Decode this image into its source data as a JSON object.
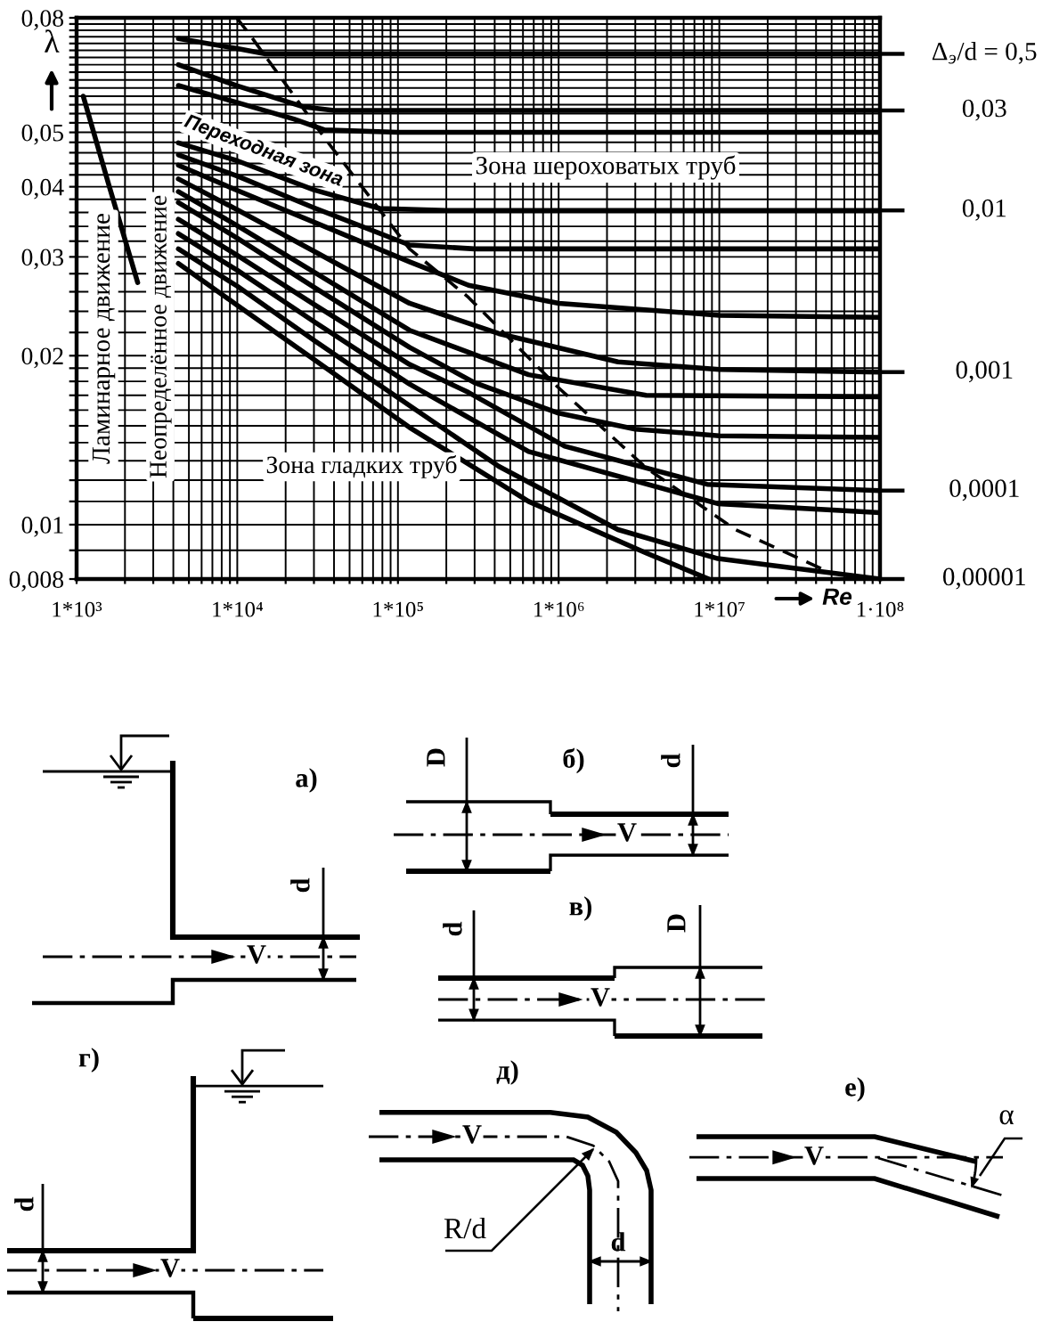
{
  "chart_data": {
    "type": "line",
    "xlabel": "Re",
    "ylabel": "λ",
    "log": "xy",
    "grid": true,
    "line_style": "solid",
    "legend": "right",
    "xlim": [
      1000,
      100000000
    ],
    "ylim": [
      0.008,
      0.08
    ],
    "xticks": [
      {
        "value": 1000,
        "label": "1*10³"
      },
      {
        "value": 2000,
        "label": null
      },
      {
        "value": 3000,
        "label": null
      },
      {
        "value": 4000,
        "label": null
      },
      {
        "value": 5000,
        "label": null
      },
      {
        "value": 6000,
        "label": null
      },
      {
        "value": 7000,
        "label": null
      },
      {
        "value": 8000,
        "label": null
      },
      {
        "value": 9000,
        "label": null
      },
      {
        "value": 10000,
        "label": "1*10⁴"
      },
      {
        "value": 20000,
        "label": null
      },
      {
        "value": 30000,
        "label": null
      },
      {
        "value": 40000,
        "label": null
      },
      {
        "value": 50000,
        "label": null
      },
      {
        "value": 60000,
        "label": null
      },
      {
        "value": 70000,
        "label": null
      },
      {
        "value": 80000,
        "label": null
      },
      {
        "value": 90000,
        "label": null
      },
      {
        "value": 100000,
        "label": "1*10⁵"
      },
      {
        "value": 200000,
        "label": null
      },
      {
        "value": 300000,
        "label": null
      },
      {
        "value": 400000,
        "label": null
      },
      {
        "value": 500000,
        "label": null
      },
      {
        "value": 600000,
        "label": null
      },
      {
        "value": 700000,
        "label": null
      },
      {
        "value": 800000,
        "label": null
      },
      {
        "value": 900000,
        "label": null
      },
      {
        "value": 1000000,
        "label": "1*10⁶"
      },
      {
        "value": 2000000,
        "label": null
      },
      {
        "value": 3000000,
        "label": null
      },
      {
        "value": 4000000,
        "label": null
      },
      {
        "value": 5000000,
        "label": null
      },
      {
        "value": 6000000,
        "label": null
      },
      {
        "value": 7000000,
        "label": null
      },
      {
        "value": 8000000,
        "label": null
      },
      {
        "value": 9000000,
        "label": null
      },
      {
        "value": 10000000,
        "label": "1*10⁷"
      },
      {
        "value": 20000000,
        "label": null
      },
      {
        "value": 30000000,
        "label": null
      },
      {
        "value": 40000000,
        "label": null
      },
      {
        "value": 50000000,
        "label": null
      },
      {
        "value": 60000000,
        "label": null
      },
      {
        "value": 70000000,
        "label": null
      },
      {
        "value": 80000000,
        "label": null
      },
      {
        "value": 90000000,
        "label": null
      },
      {
        "value": 100000000,
        "label": "1·10⁸"
      }
    ],
    "yticks": [
      {
        "value": 0.008,
        "label": "0,008"
      },
      {
        "value": 0.009,
        "label": null
      },
      {
        "value": 0.01,
        "label": "0,01"
      },
      {
        "value": 0.011,
        "label": null
      },
      {
        "value": 0.012,
        "label": null
      },
      {
        "value": 0.013,
        "label": null
      },
      {
        "value": 0.014,
        "label": null
      },
      {
        "value": 0.015,
        "label": null
      },
      {
        "value": 0.016,
        "label": null
      },
      {
        "value": 0.017,
        "label": null
      },
      {
        "value": 0.018,
        "label": null
      },
      {
        "value": 0.019,
        "label": null
      },
      {
        "value": 0.02,
        "label": "0,02"
      },
      {
        "value": 0.022,
        "label": null
      },
      {
        "value": 0.024,
        "label": null
      },
      {
        "value": 0.026,
        "label": null
      },
      {
        "value": 0.028,
        "label": null
      },
      {
        "value": 0.03,
        "label": "0,03"
      },
      {
        "value": 0.032,
        "label": null
      },
      {
        "value": 0.034,
        "label": null
      },
      {
        "value": 0.036,
        "label": null
      },
      {
        "value": 0.038,
        "label": null
      },
      {
        "value": 0.04,
        "label": "0,04"
      },
      {
        "value": 0.042,
        "label": null
      },
      {
        "value": 0.044,
        "label": null
      },
      {
        "value": 0.046,
        "label": null
      },
      {
        "value": 0.048,
        "label": null
      },
      {
        "value": 0.05,
        "label": "0,05"
      },
      {
        "value": 0.052,
        "label": null
      },
      {
        "value": 0.054,
        "label": null
      },
      {
        "value": 0.056,
        "label": null
      },
      {
        "value": 0.058,
        "label": null
      },
      {
        "value": 0.06,
        "label": null
      },
      {
        "value": 0.062,
        "label": null
      },
      {
        "value": 0.064,
        "label": null
      },
      {
        "value": 0.066,
        "label": null
      },
      {
        "value": 0.068,
        "label": null
      },
      {
        "value": 0.07,
        "label": null
      },
      {
        "value": 0.072,
        "label": null
      },
      {
        "value": 0.074,
        "label": null
      },
      {
        "value": 0.076,
        "label": null
      },
      {
        "value": 0.078,
        "label": null
      },
      {
        "value": 0.08,
        "label": "0,08"
      }
    ],
    "series": [
      {
        "name": "Δ$_{э}$/d = 0,5",
        "color": "#000000",
        "x": [
          4300,
          10000,
          15000,
          100000000
        ],
        "values": [
          0.0735,
          0.0705,
          0.069,
          0.069
        ]
      },
      {
        "name": "0,03",
        "color": "#000000",
        "x": [
          4300,
          10000,
          26000,
          40000,
          100000000
        ],
        "values": [
          0.066,
          0.0605,
          0.0555,
          0.0547,
          0.0547
        ]
      },
      {
        "color": "#000000",
        "x": [
          4300,
          10000,
          22500,
          35000,
          100000,
          100000000
        ],
        "values": [
          0.0606,
          0.0565,
          0.0528,
          0.0505,
          0.05,
          0.05
        ]
      },
      {
        "name": "0,01",
        "color": "#000000",
        "x": [
          4300,
          10000,
          30000,
          77000,
          200000,
          100000000
        ],
        "values": [
          0.0479,
          0.0445,
          0.0395,
          0.0366,
          0.0363,
          0.0363
        ]
      },
      {
        "color": "#000000",
        "x": [
          4300,
          10000,
          30000,
          118000,
          300000,
          100000000
        ],
        "values": [
          0.0456,
          0.0418,
          0.0367,
          0.0315,
          0.031,
          0.031
        ]
      },
      {
        "color": "#000000",
        "x": [
          4300,
          10000,
          30000,
          118000,
          275000,
          1000000,
          10000000,
          100000000
        ],
        "values": [
          0.0437,
          0.0394,
          0.0346,
          0.0294,
          0.0267,
          0.0248,
          0.0236,
          0.0234
        ]
      },
      {
        "name": "0,001",
        "color": "#000000",
        "x": [
          4300,
          10000,
          30000,
          118000,
          424000,
          2340000,
          10000000,
          100000000
        ],
        "values": [
          0.0413,
          0.0364,
          0.0307,
          0.0248,
          0.0219,
          0.0195,
          0.0189,
          0.0187
        ]
      },
      {
        "color": "#000000",
        "x": [
          4300,
          10000,
          30000,
          118000,
          650000,
          3500000,
          100000000
        ],
        "values": [
          0.0392,
          0.0341,
          0.0282,
          0.0222,
          0.0185,
          0.017,
          0.0169
        ]
      },
      {
        "color": "#000000",
        "x": [
          4300,
          10000,
          30000,
          118000,
          300000,
          1000000,
          3000000,
          10000000,
          100000000
        ],
        "values": [
          0.0375,
          0.0324,
          0.0265,
          0.0207,
          0.0179,
          0.0158,
          0.0148,
          0.0144,
          0.0143
        ]
      },
      {
        "name": "0,0001",
        "color": "#000000",
        "x": [
          4300,
          10000,
          30000,
          118000,
          275000,
          1090000,
          8400000,
          100000000
        ],
        "values": [
          0.035,
          0.0302,
          0.0247,
          0.0193,
          0.0172,
          0.0138,
          0.0118,
          0.0115
        ]
      },
      {
        "color": "#000000",
        "x": [
          4300,
          10000,
          30000,
          118000,
          650000,
          9800000,
          100000000
        ],
        "values": [
          0.033,
          0.0284,
          0.023,
          0.0178,
          0.0135,
          0.0109,
          0.0105
        ]
      },
      {
        "name": "0,00001",
        "color": "#000000",
        "x": [
          4300,
          10000,
          30000,
          118000,
          424000,
          2340000,
          9800000,
          100000000
        ],
        "values": [
          0.031,
          0.0266,
          0.0213,
          0.0163,
          0.0127,
          0.0098,
          0.0087,
          0.008
        ]
      },
      {
        "color": "#000000",
        "x": [
          4300,
          10000,
          30000,
          118000,
          650000,
          3500000,
          8600000
        ],
        "values": [
          0.0292,
          0.0246,
          0.0197,
          0.0149,
          0.011,
          0.0089,
          0.008
        ]
      },
      {
        "color": "#000000",
        "x": [
          1100,
          1600,
          2400
        ],
        "values": [
          0.058,
          0.04,
          0.027
        ]
      },
      {
        "color": "#000000",
        "line_style": "dashed",
        "x": [
          9900,
          11900,
          34700,
          118000,
          275000,
          985000,
          3530000,
          12600000,
          45300000
        ],
        "values": [
          0.08,
          0.0748,
          0.049,
          0.031,
          0.0254,
          0.0176,
          0.0126,
          0.0098,
          0.0083
        ]
      }
    ],
    "annotations": [
      "Ламинарное движение",
      "Неопределённое движение",
      "Переходная зона",
      "Зона шероховатых труб",
      "Зона гладких труб",
      "а)",
      "d",
      "V",
      "б)",
      "D",
      "d",
      "V",
      "в)",
      "d",
      "D",
      "V",
      "г)",
      "d",
      "V",
      "д)",
      "V",
      "R/d",
      "d",
      "е)",
      "V",
      "α"
    ]
  }
}
